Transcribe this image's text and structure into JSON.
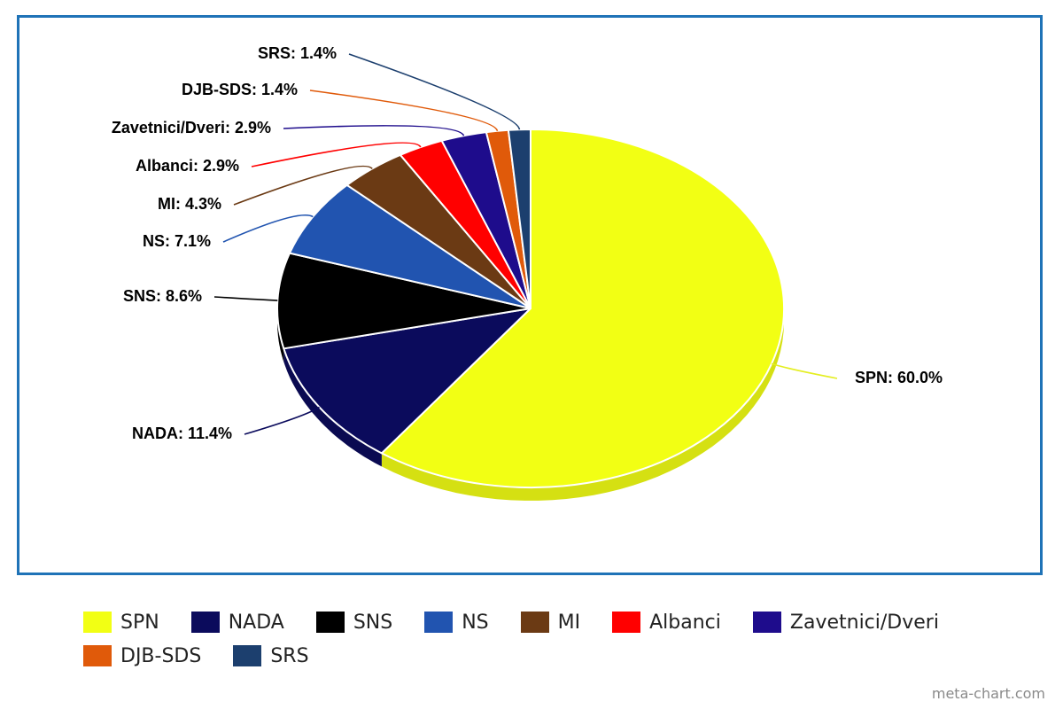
{
  "chart_data": {
    "type": "pie",
    "title": "",
    "style": "3d",
    "categories": [
      "SPN",
      "NADA",
      "SNS",
      "NS",
      "MI",
      "Albanci",
      "Zavetnici/Dveri",
      "DJB-SDS",
      "SRS"
    ],
    "values": [
      60.0,
      11.4,
      8.6,
      7.1,
      4.3,
      2.9,
      2.9,
      1.4,
      1.4
    ],
    "unit": "%",
    "data_labels": [
      "SPN: 60.0%",
      "NADA: 11.4%",
      "SNS: 8.6%",
      "NS: 7.1%",
      "MI: 4.3%",
      "Albanci: 2.9%",
      "Zavetnici/Dveri: 2.9%",
      "DJB-SDS: 1.4%",
      "SRS: 1.4%"
    ],
    "colors": [
      "#f2ff14",
      "#0b0b5c",
      "#000000",
      "#2154b0",
      "#6b3a14",
      "#ff0000",
      "#1e0c8c",
      "#e05a0a",
      "#1c3f6e"
    ],
    "legend_placement": "bottom"
  },
  "watermark": "meta-chart.com"
}
